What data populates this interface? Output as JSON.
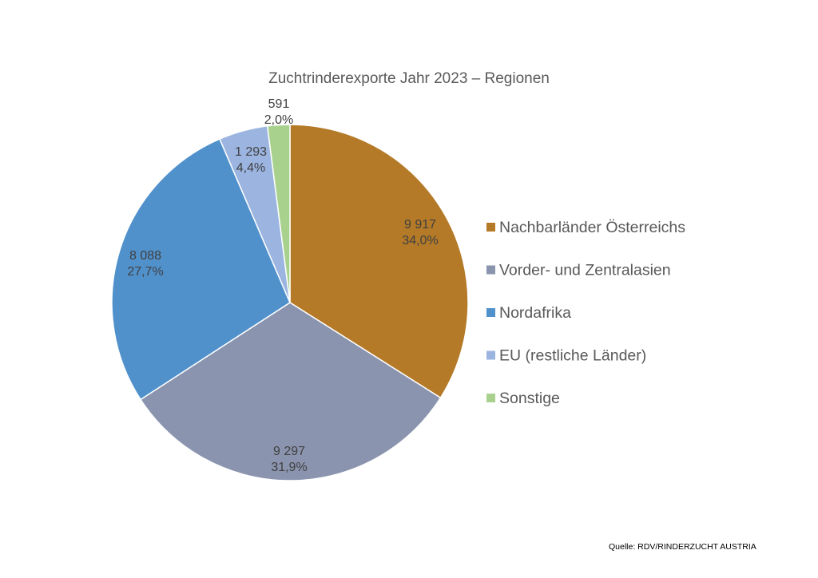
{
  "chart_data": {
    "type": "pie",
    "title": "Zuchtrinderexporte Jahr 2023 – Regionen",
    "categories": [
      "Nachbarländer Österreichs",
      "Vorder- und Zentralasien",
      "Nordafrika",
      "EU (restliche Länder)",
      "Sonstige"
    ],
    "values": [
      9917,
      9297,
      8088,
      1293,
      591
    ],
    "value_labels": [
      "9 917",
      "9 297",
      "8 088",
      "1 293",
      "591"
    ],
    "percent_labels": [
      "34,0%",
      "31,9%",
      "27,7%",
      "4,4%",
      "2,0%"
    ],
    "colors": [
      "#B47A27",
      "#8A94AE",
      "#5091CC",
      "#9BB4E0",
      "#A9D18E"
    ],
    "start_angle": "12 o'clock",
    "direction": "clockwise",
    "legend_position": "right"
  },
  "source": "Quelle: RDV/RINDERZUCHT AUSTRIA"
}
